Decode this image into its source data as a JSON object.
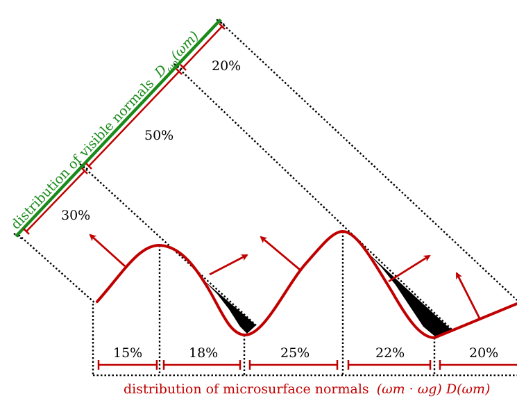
{
  "visible_normals": {
    "label": "distribution of visible normals",
    "symbol": "D",
    "symbol_sub": "ωo",
    "symbol_arg": "(ωm)",
    "color": "#1a8a1a",
    "segments": [
      "30%",
      "50%",
      "20%"
    ]
  },
  "microsurface_normals": {
    "label": "distribution of microsurface normals",
    "symbol": "(ωm · ωg) D(ωm)",
    "color": "#c00000",
    "segments": [
      "15%",
      "18%",
      "25%",
      "22%",
      "20%"
    ]
  },
  "colors": {
    "surface": "#c00000",
    "visible_axis": "#1a8a1a",
    "shadow": "#000000"
  }
}
